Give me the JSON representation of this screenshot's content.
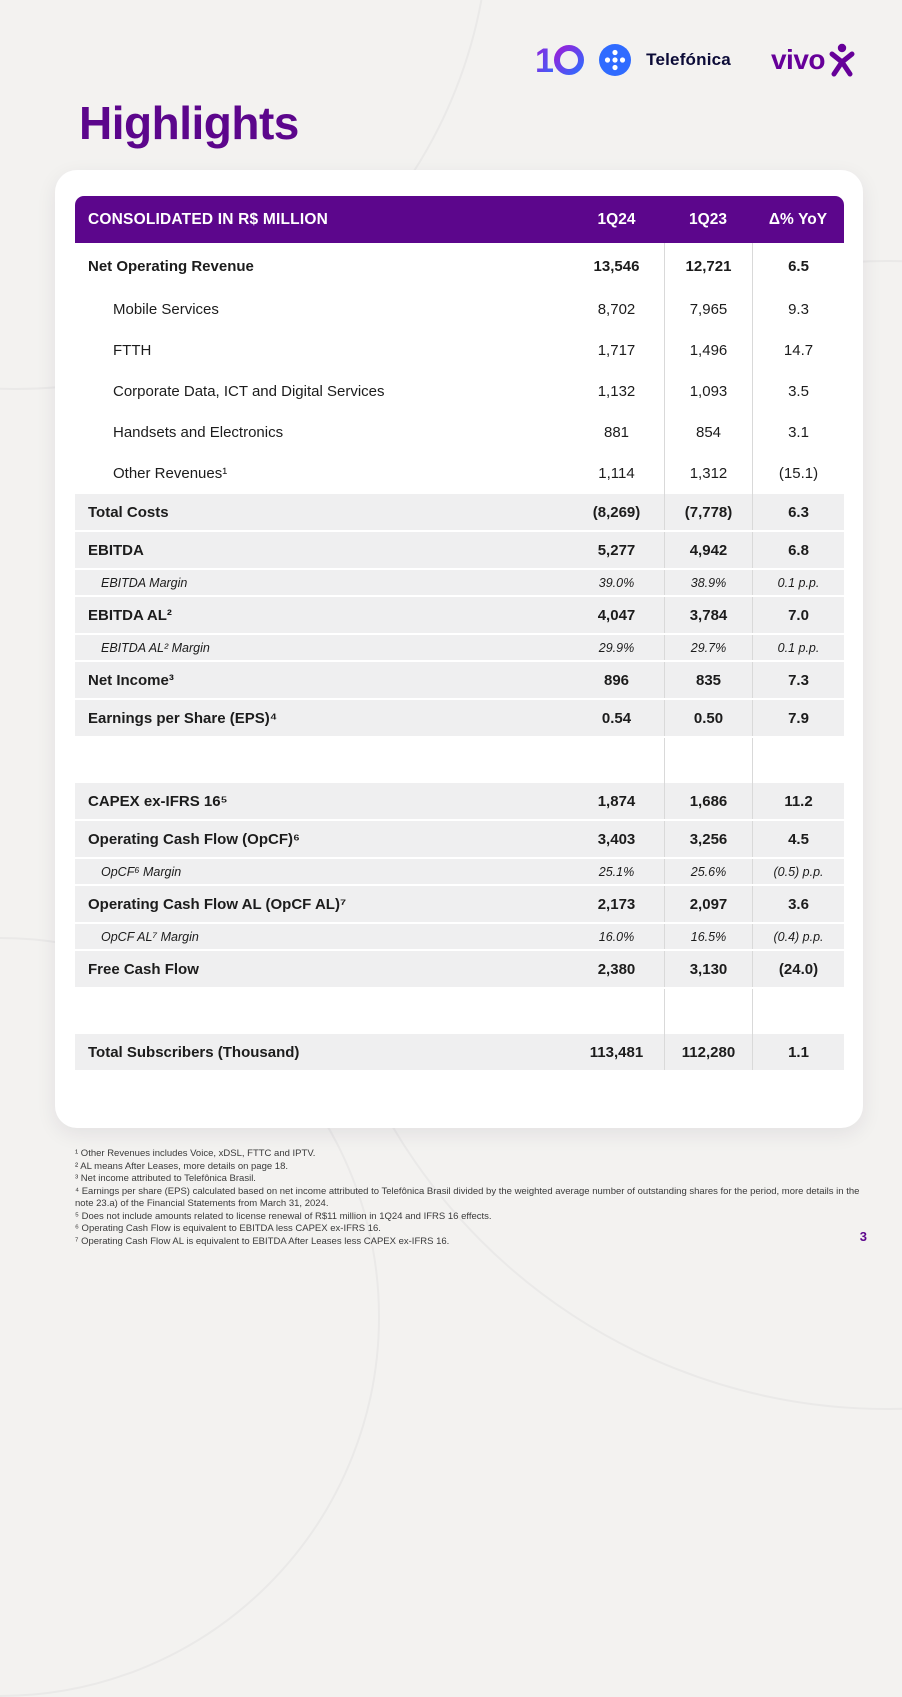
{
  "page": {
    "title": "Highlights",
    "page_number": "3"
  },
  "logos": {
    "telefonica_wordmark": "Telefónica",
    "vivo_wordmark": "vivo"
  },
  "colors": {
    "brand_purple": "#5c068c",
    "vivo_purple": "#660099",
    "telefonica_navy": "#0b0b37",
    "telefonica_blue": "#2f6bff",
    "row_shade": "#efeff0"
  },
  "table": {
    "headers": [
      "CONSOLIDATED IN R$ MILLION",
      "1Q24",
      "1Q23",
      "Δ% YoY"
    ],
    "rows": [
      {
        "label": "Net Operating Revenue",
        "q1": "13,546",
        "q2": "12,721",
        "yoy": "6.5",
        "type": "main",
        "shaded": false
      },
      {
        "label": "Mobile Services",
        "q1": "8,702",
        "q2": "7,965",
        "yoy": "9.3",
        "type": "sub",
        "shaded": false
      },
      {
        "label": "FTTH",
        "q1": "1,717",
        "q2": "1,496",
        "yoy": "14.7",
        "type": "sub",
        "shaded": false
      },
      {
        "label": "Corporate Data, ICT and Digital Services",
        "q1": "1,132",
        "q2": "1,093",
        "yoy": "3.5",
        "type": "sub",
        "shaded": false
      },
      {
        "label": "Handsets and Electronics",
        "q1": "881",
        "q2": "854",
        "yoy": "3.1",
        "type": "sub",
        "shaded": false
      },
      {
        "label": "Other Revenues¹",
        "q1": "1,114",
        "q2": "1,312",
        "yoy": "(15.1)",
        "type": "sub",
        "shaded": false
      },
      {
        "label": "Total Costs",
        "q1": "(8,269)",
        "q2": "(7,778)",
        "yoy": "6.3",
        "type": "main",
        "shaded": true
      },
      {
        "label": "EBITDA",
        "q1": "5,277",
        "q2": "4,942",
        "yoy": "6.8",
        "type": "main",
        "shaded": true
      },
      {
        "label": "EBITDA Margin",
        "q1": "39.0%",
        "q2": "38.9%",
        "yoy": "0.1 p.p.",
        "type": "margin",
        "shaded": true
      },
      {
        "label": "EBITDA AL²",
        "q1": "4,047",
        "q2": "3,784",
        "yoy": "7.0",
        "type": "main",
        "shaded": true
      },
      {
        "label": "EBITDA AL² Margin",
        "q1": "29.9%",
        "q2": "29.7%",
        "yoy": "0.1 p.p.",
        "type": "margin",
        "shaded": true
      },
      {
        "label": "Net Income³",
        "q1": "896",
        "q2": "835",
        "yoy": "7.3",
        "type": "main",
        "shaded": true
      },
      {
        "label": "Earnings per Share (EPS)⁴",
        "q1": "0.54",
        "q2": "0.50",
        "yoy": "7.9",
        "type": "main",
        "shaded": true
      },
      {
        "label": "",
        "q1": "",
        "q2": "",
        "yoy": "",
        "type": "spacer",
        "shaded": false
      },
      {
        "label": "CAPEX ex-IFRS 16⁵",
        "q1": "1,874",
        "q2": "1,686",
        "yoy": "11.2",
        "type": "main",
        "shaded": true
      },
      {
        "label": "Operating Cash Flow (OpCF)⁶",
        "q1": "3,403",
        "q2": "3,256",
        "yoy": "4.5",
        "type": "main",
        "shaded": true
      },
      {
        "label": "OpCF⁶ Margin",
        "q1": "25.1%",
        "q2": "25.6%",
        "yoy": "(0.5) p.p.",
        "type": "margin",
        "shaded": true
      },
      {
        "label": "Operating Cash Flow AL (OpCF AL)⁷",
        "q1": "2,173",
        "q2": "2,097",
        "yoy": "3.6",
        "type": "main",
        "shaded": true
      },
      {
        "label": "OpCF AL⁷ Margin",
        "q1": "16.0%",
        "q2": "16.5%",
        "yoy": "(0.4) p.p.",
        "type": "margin",
        "shaded": true
      },
      {
        "label": "Free Cash Flow",
        "q1": "2,380",
        "q2": "3,130",
        "yoy": "(24.0)",
        "type": "main",
        "shaded": true
      },
      {
        "label": "",
        "q1": "",
        "q2": "",
        "yoy": "",
        "type": "spacer",
        "shaded": false
      },
      {
        "label": "Total Subscribers (Thousand)",
        "q1": "113,481",
        "q2": "112,280",
        "yoy": "1.1",
        "type": "main",
        "shaded": true
      }
    ]
  },
  "footnotes": [
    "¹ Other Revenues includes Voice, xDSL, FTTC and IPTV.",
    "² AL means After Leases, more details on page 18.",
    "³ Net income attributed to Telefônica Brasil.",
    "⁴ Earnings per share (EPS) calculated based on net income attributed to Telefônica Brasil divided by the weighted average number of outstanding shares for the period, more details in the note 23.a) of the Financial Statements from March 31, 2024.",
    "⁵ Does not include amounts related to license renewal of R$11 million in 1Q24 and IFRS 16 effects.",
    "⁶ Operating Cash Flow is equivalent to EBITDA less CAPEX ex-IFRS 16.",
    "⁷ Operating Cash Flow AL is equivalent to EBITDA After Leases less CAPEX ex-IFRS 16."
  ]
}
